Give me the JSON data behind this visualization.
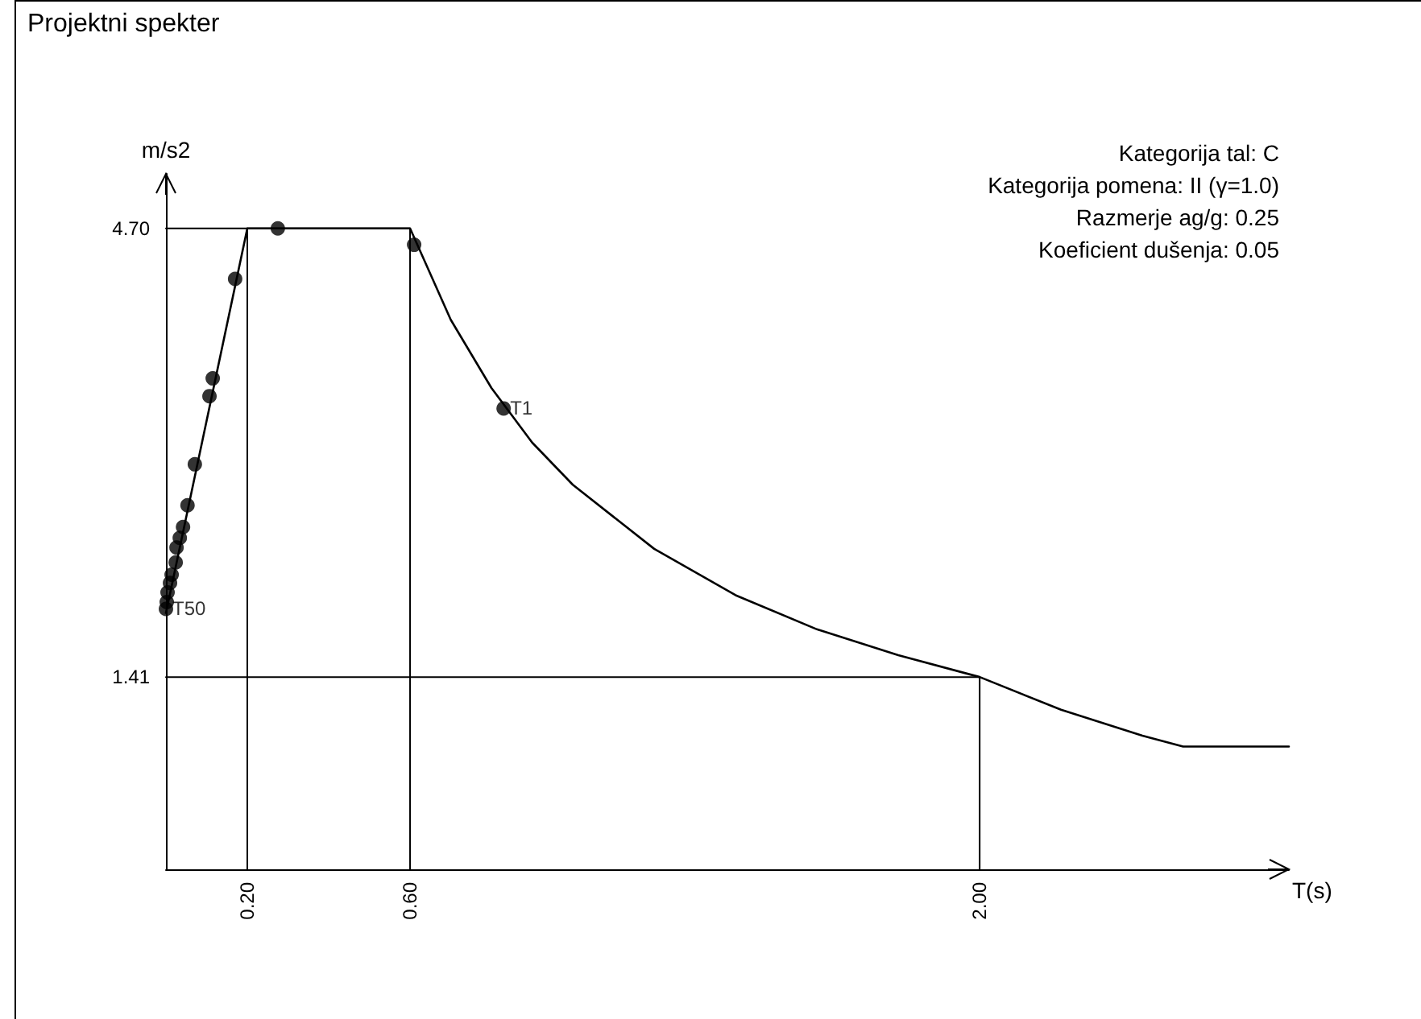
{
  "chart_data": {
    "type": "line",
    "title": "Projektni spekter",
    "xlabel": "T(s)",
    "ylabel": "m/s2",
    "annotations": [
      "Kategorija tal: C",
      "Kategorija pomena: II (γ=1.0)",
      "Razmerje ag/g: 0.25",
      "Koeficient dušenja: 0.05",
      {
        "text": "T1",
        "x": 0.83,
        "y": 3.38
      },
      {
        "text": "T50",
        "x": 0,
        "y": 1.91
      }
    ],
    "series": [
      {
        "color": "#000000",
        "marker": "none",
        "line_style": "solid",
        "x": [
          0,
          0.2,
          0.6,
          0.7,
          0.8,
          0.9,
          1.0,
          1.2,
          1.4,
          1.6,
          1.8,
          2.0,
          2.2,
          2.4,
          2.5,
          2.76
        ],
        "values": [
          1.88,
          4.7,
          4.7,
          4.03,
          3.53,
          3.13,
          2.82,
          2.35,
          2.01,
          1.76,
          1.57,
          1.41,
          1.17,
          0.98,
          0.9,
          0.9
        ]
      },
      {
        "type": "scatter",
        "color": "#000000",
        "marker": "circle",
        "x": [
          0.275,
          0.61,
          0.83,
          0.17,
          0.115,
          0.107,
          0.071,
          0.053,
          0.042,
          0.034,
          0.026,
          0.024,
          0.014,
          0.01,
          0.004,
          0.002,
          0
        ],
        "values": [
          4.7,
          4.58,
          3.38,
          4.33,
          3.6,
          3.47,
          2.97,
          2.67,
          2.51,
          2.43,
          2.36,
          2.25,
          2.16,
          2.1,
          2.03,
          1.96,
          1.91
        ]
      },
      {
        "type": "line",
        "color": "#000000",
        "marker": "none",
        "x": [
          0,
          0.2,
          0.2
        ],
        "values": [
          4.7,
          4.7,
          0
        ]
      },
      {
        "type": "line",
        "color": "#000000",
        "marker": "none",
        "x": [
          0.2,
          0.6,
          0.6
        ],
        "values": [
          4.7,
          4.7,
          0
        ]
      },
      {
        "type": "line",
        "color": "#000000",
        "marker": "none",
        "x": [
          0,
          2.0,
          2.0
        ],
        "values": [
          1.41,
          1.41,
          0
        ]
      }
    ],
    "xlim": [
      0,
      2.76
    ],
    "ylim": [
      0,
      5.1
    ],
    "xticks": [
      {
        "value": 0.2,
        "label": "0.20"
      },
      {
        "value": 0.6,
        "label": "0.60"
      },
      {
        "value": 2.0,
        "label": "2.00"
      }
    ],
    "yticks": [
      {
        "value": 1.41,
        "label": "1.41"
      },
      {
        "value": 4.7,
        "label": "4.70"
      }
    ],
    "grid": false
  }
}
